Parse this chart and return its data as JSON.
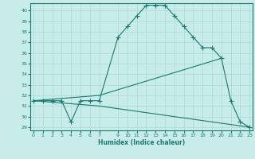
{
  "xlabel": "Humidex (Indice chaleur)",
  "bg_color": "#c8ecea",
  "grid_color": "#b0dbd8",
  "line_color": "#1a7a6e",
  "line1_x": [
    0,
    1,
    2,
    3,
    4,
    5,
    6,
    7,
    9,
    10,
    11,
    12,
    13,
    14,
    15,
    16,
    17,
    18,
    19,
    20,
    21,
    22,
    23
  ],
  "line1_y": [
    31.5,
    31.5,
    31.5,
    31.5,
    29.5,
    31.5,
    31.5,
    31.5,
    37.5,
    38.5,
    39.5,
    40.5,
    40.5,
    40.5,
    39.5,
    38.5,
    37.5,
    36.5,
    36.5,
    35.5,
    31.5,
    29.5,
    29.0
  ],
  "line2_x": [
    0,
    7,
    20
  ],
  "line2_y": [
    31.5,
    32.0,
    35.5
  ],
  "line3_x": [
    0,
    7,
    23
  ],
  "line3_y": [
    31.5,
    31.0,
    29.0
  ],
  "xlim": [
    -0.3,
    23.3
  ],
  "ylim": [
    28.7,
    40.7
  ],
  "yticks": [
    29,
    30,
    31,
    32,
    33,
    34,
    35,
    36,
    37,
    38,
    39,
    40
  ],
  "xticks": [
    0,
    1,
    2,
    3,
    4,
    5,
    6,
    7,
    9,
    10,
    11,
    12,
    13,
    14,
    15,
    16,
    17,
    18,
    19,
    20,
    21,
    22,
    23
  ]
}
